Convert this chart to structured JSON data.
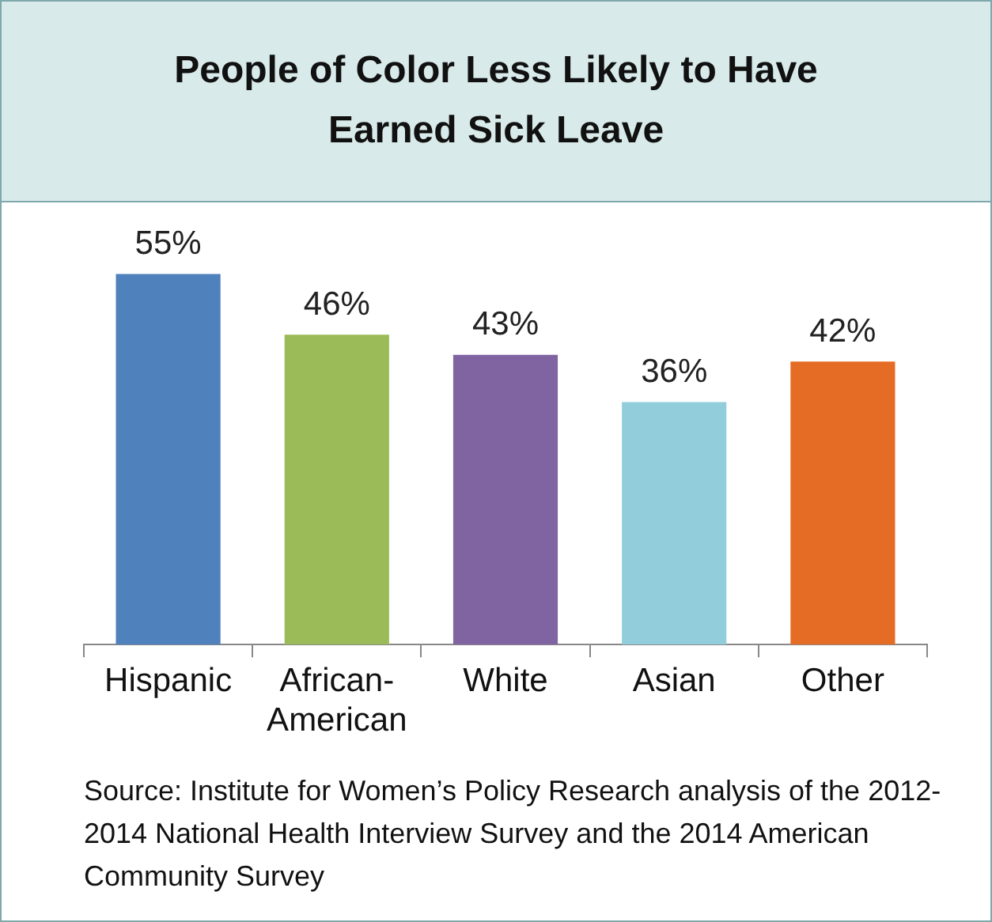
{
  "chart_data": {
    "type": "bar",
    "title": "People of Color Less Likely to Have Earned Sick Leave",
    "categories": [
      "Hispanic",
      "African-American",
      "White",
      "Asian",
      "Other"
    ],
    "values": [
      55,
      46,
      43,
      36,
      42
    ],
    "colors": [
      "#4f81bd",
      "#9bbb59",
      "#8064a2",
      "#92cddc",
      "#e46c24"
    ],
    "tick_labels": "x",
    "value_labels": [
      "55%",
      "46%",
      "43%",
      "36%",
      "42%"
    ],
    "grid": false,
    "legend": false,
    "annotations": [
      "Source: Institute for Women’s Policy Research analysis of the 2012-2014 National Health Interview Survey and the 2014 American Community Survey"
    ]
  }
}
